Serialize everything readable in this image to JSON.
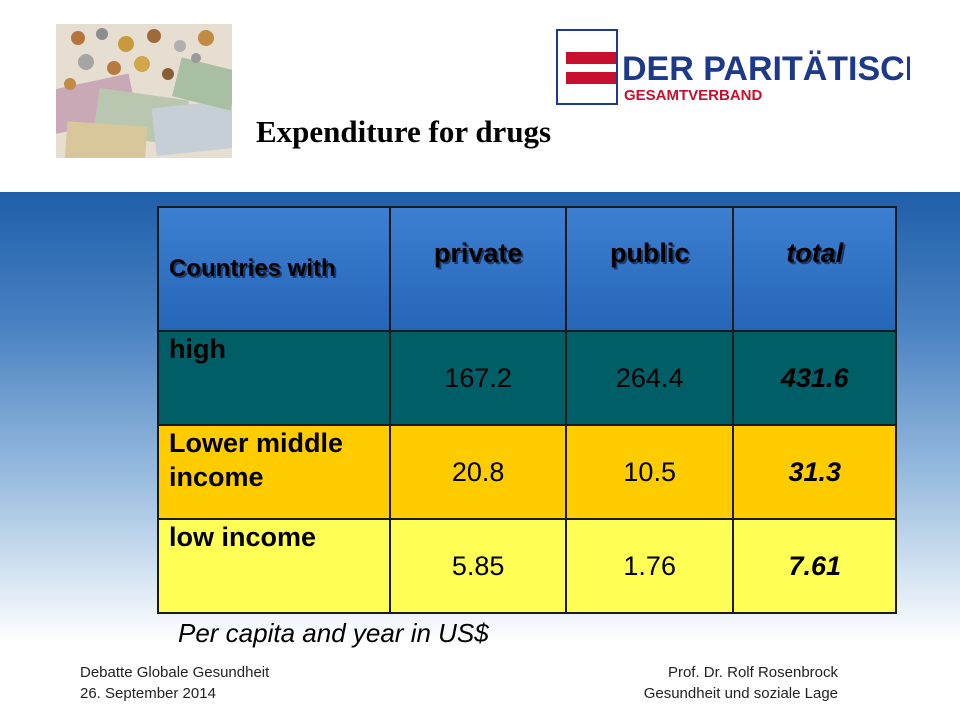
{
  "title": "Expenditure for drugs",
  "logo": {
    "line1": "DER PARITÄTISCHE",
    "line2": "GESAMTVERBAND",
    "brand_color": "#c8102e",
    "text_color": "#1d3a8a"
  },
  "table": {
    "headers": [
      "Countries with",
      "private",
      "public",
      "total"
    ],
    "rows": [
      {
        "label": "high",
        "private": "167.2",
        "public": "264.4",
        "total": "431.6"
      },
      {
        "label": "Lower middle income",
        "private": "20.8",
        "public": "10.5",
        "total": "31.3"
      },
      {
        "label": "low income",
        "private": "5.85",
        "public": "1.76",
        "total": "7.61"
      }
    ]
  },
  "caption": "Per capita and year in US$",
  "footer": {
    "left_line1": "Debatte Globale Gesundheit",
    "left_line2": "26. September 2014",
    "right_line1": "Prof. Dr. Rolf Rosenbrock",
    "right_line2": "Gesundheit und soziale Lage"
  }
}
